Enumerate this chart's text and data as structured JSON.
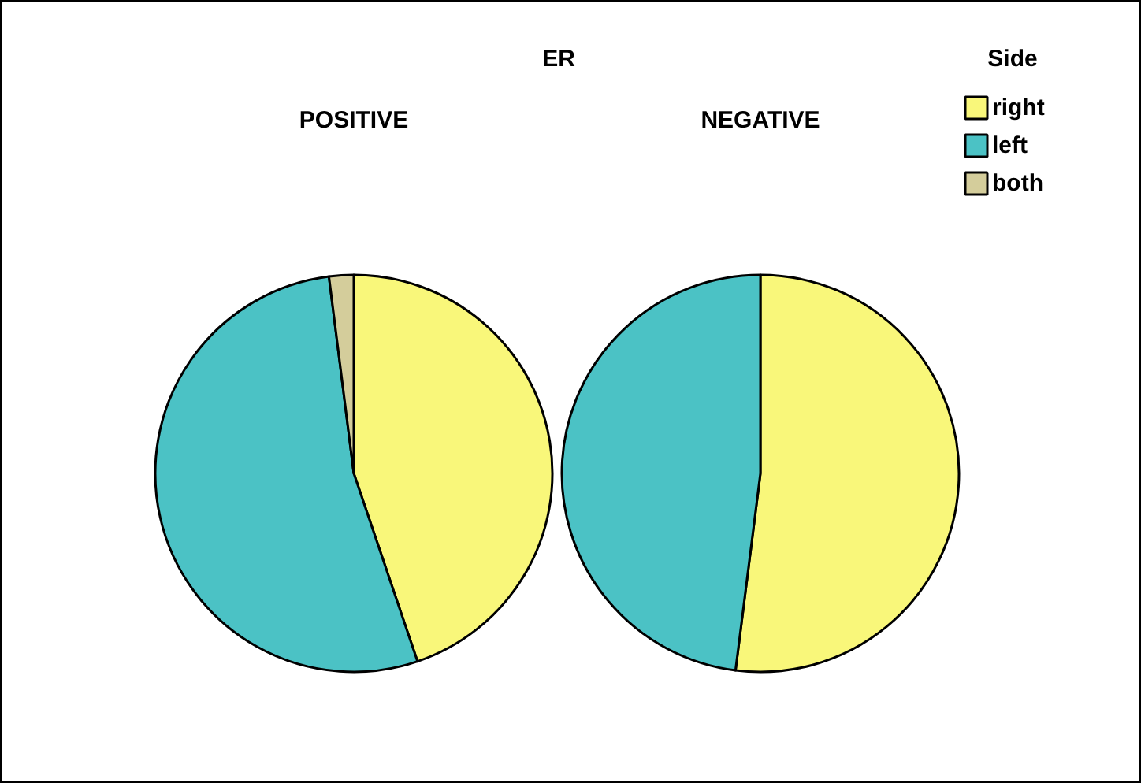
{
  "chart_data": [
    {
      "type": "pie",
      "title": "POSITIVE",
      "annotations": [
        "ER"
      ],
      "categories": [
        "right",
        "left",
        "both"
      ],
      "values": [
        44.8,
        53.2,
        2.0
      ],
      "colors": [
        "#f9f77a",
        "#4bc2c5",
        "#d4cd9b"
      ],
      "legend": "top right",
      "legend_title": "Side"
    },
    {
      "type": "pie",
      "title": "NEGATIVE",
      "categories": [
        null,
        null,
        null
      ],
      "values": [
        52.0,
        48.0,
        0
      ],
      "colors": [
        "#f9f77a",
        "#4bc2c5",
        "#d4cd9b"
      ]
    }
  ]
}
